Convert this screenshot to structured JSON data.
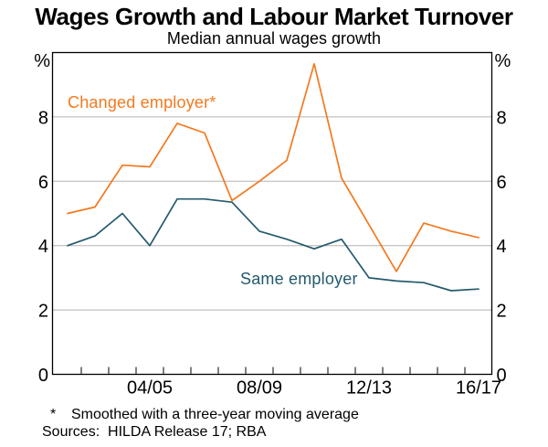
{
  "header": {
    "title": "Wages Growth and Labour Market Turnover",
    "subtitle": "Median annual wages growth"
  },
  "footnotes": {
    "marker": "*",
    "note": "Smoothed with a three-year moving average",
    "sources": "Sources:  HILDA Release 17; RBA"
  },
  "chart_data": {
    "type": "line",
    "title": "Wages Growth and Labour Market Turnover",
    "subtitle": "Median annual wages growth",
    "unit_left": "%",
    "unit_right": "%",
    "categories": [
      "01/02",
      "02/03",
      "03/04",
      "04/05",
      "05/06",
      "06/07",
      "07/08",
      "08/09",
      "09/10",
      "10/11",
      "11/12",
      "12/13",
      "13/14",
      "14/15",
      "15/16",
      "16/17"
    ],
    "xtick_labels": [
      "04/05",
      "08/09",
      "12/13",
      "16/17"
    ],
    "xtick_indices": [
      3,
      7,
      11,
      15
    ],
    "ylim": [
      0,
      10
    ],
    "yticks": [
      0,
      2,
      4,
      6,
      8
    ],
    "grid": true,
    "legend_position": "inline-labels",
    "colors": {
      "changed_employer": "#f4791f",
      "same_employer": "#235a6c",
      "gridline": "#b3b3b3",
      "axis": "#000000"
    },
    "series": [
      {
        "name": "Changed employer*",
        "color": "#f4791f",
        "values": [
          5.0,
          5.2,
          6.5,
          6.45,
          7.8,
          7.5,
          5.4,
          6.0,
          6.65,
          9.65,
          6.1,
          4.65,
          3.2,
          4.7,
          4.45,
          4.25
        ]
      },
      {
        "name": "Same employer",
        "color": "#235a6c",
        "values": [
          4.0,
          4.3,
          5.0,
          4.0,
          5.45,
          5.45,
          5.35,
          4.45,
          4.2,
          3.9,
          4.2,
          3.0,
          2.9,
          2.85,
          2.6,
          2.65
        ]
      }
    ]
  }
}
